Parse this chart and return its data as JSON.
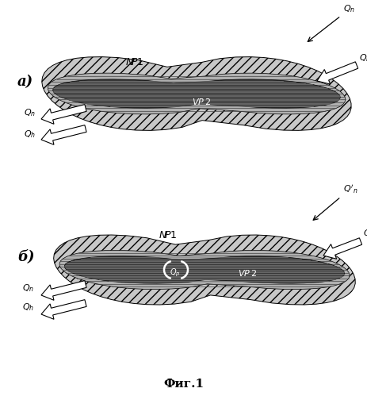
{
  "fig_width": 4.64,
  "fig_height": 4.99,
  "dpi": 100,
  "bg_color": "#ffffff",
  "caption": "Фиг.1",
  "label_a": "а)",
  "label_b": "б)",
  "gray_outer": "#c8c8c8",
  "gray_mid": "#999999",
  "gray_dark": "#383838",
  "line_color": "#111111",
  "white": "#ffffff",
  "black": "#000000"
}
